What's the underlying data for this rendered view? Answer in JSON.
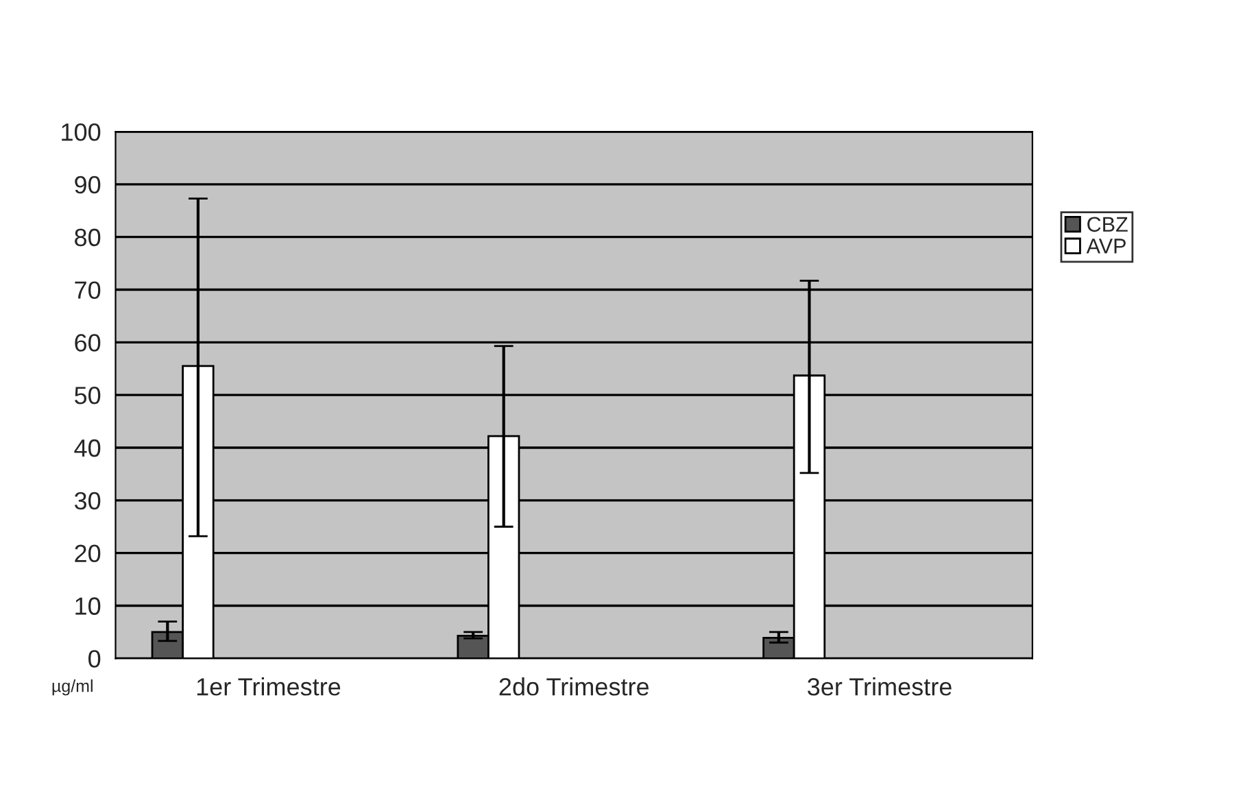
{
  "chart_data": {
    "type": "bar",
    "ylabel": "µg/ml",
    "categories": [
      "1er Trimestre",
      "2do Trimestre",
      "3er Trimestre"
    ],
    "series": [
      {
        "name": "CBZ",
        "color": "#555555",
        "values": [
          5,
          4.3,
          3.9
        ],
        "errors": [
          [
            3.3,
            7
          ],
          [
            3.8,
            5
          ],
          [
            3,
            5
          ]
        ]
      },
      {
        "name": "AVP",
        "color": "#ffffff",
        "values": [
          55.5,
          42.2,
          53.7
        ],
        "errors": [
          [
            23.2,
            87.3
          ],
          [
            25,
            59.3
          ],
          [
            35.2,
            71.7
          ]
        ]
      }
    ],
    "ylim": [
      0,
      100
    ],
    "yticks": [
      0,
      10,
      20,
      30,
      40,
      50,
      60,
      70,
      80,
      90,
      100
    ],
    "grid": "y",
    "legend": "right"
  }
}
